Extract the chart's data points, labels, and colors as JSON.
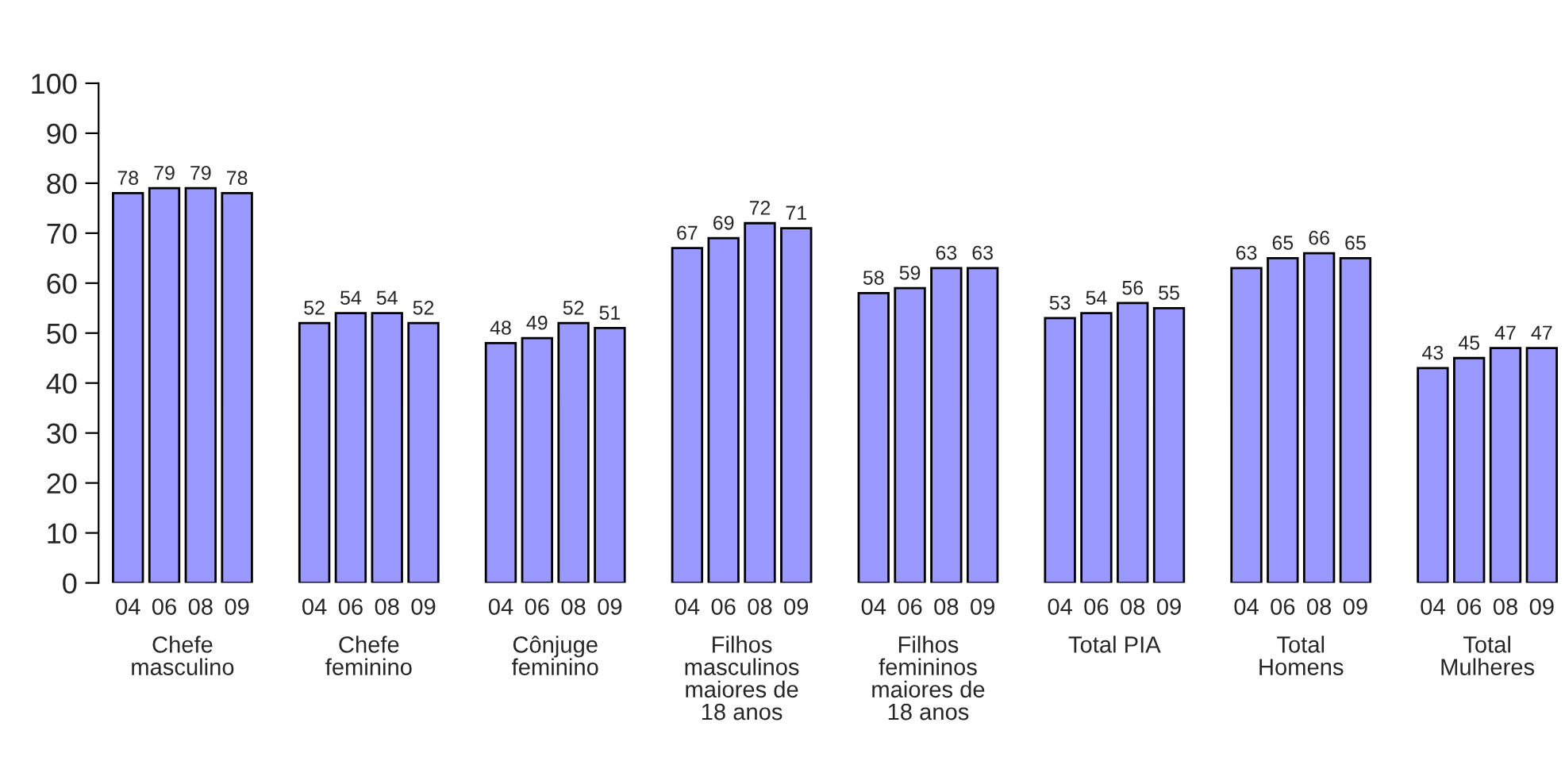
{
  "chart_data": {
    "type": "bar",
    "categories": [
      "Chefe\nmasculino",
      "Chefe\nfeminino",
      "Cônjuge\nfeminino",
      "Filhos\nmasculinos\nmaiores de\n18 anos",
      "Filhos\nfemininos\nmaiores de\n18 anos",
      "Total PIA",
      "Total\nHomens",
      "Total\nMulheres"
    ],
    "series": [
      {
        "name": "04",
        "color": "#9999ff",
        "values": [
          78,
          52,
          48,
          67,
          58,
          53,
          63,
          43
        ]
      },
      {
        "name": "06",
        "color": "#9999ff",
        "values": [
          79,
          54,
          49,
          69,
          59,
          54,
          65,
          45
        ]
      },
      {
        "name": "08",
        "color": "#9999ff",
        "values": [
          79,
          54,
          52,
          72,
          63,
          56,
          66,
          47
        ]
      },
      {
        "name": "09",
        "color": "#9999ff",
        "values": [
          78,
          52,
          51,
          71,
          63,
          55,
          65,
          47
        ]
      }
    ],
    "ylim": [
      0,
      100
    ],
    "yticks": [
      0,
      10,
      20,
      30,
      40,
      50,
      60,
      70,
      80,
      90,
      100
    ],
    "data_labels": true,
    "grid": false,
    "legend": false
  }
}
